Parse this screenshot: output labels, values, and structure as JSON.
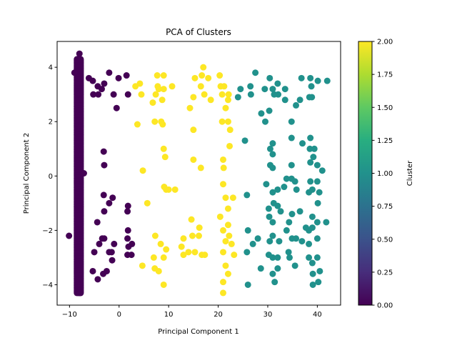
{
  "chart_data": {
    "type": "scatter",
    "title": "PCA of Clusters",
    "xlabel": "Principal Component 1",
    "ylabel": "Principal Component 2",
    "xlim": [
      -12.5,
      44.7
    ],
    "ylim": [
      -4.75,
      4.95
    ],
    "xticks": [
      -10,
      0,
      10,
      20,
      30,
      40
    ],
    "yticks": [
      -4,
      -2,
      0,
      2,
      4
    ],
    "grid": false,
    "colorbar": {
      "label": "Cluster",
      "min": 0.0,
      "max": 2.0,
      "ticks": [
        "0.00",
        "0.25",
        "0.50",
        "0.75",
        "1.00",
        "1.25",
        "1.50",
        "1.75",
        "2.00"
      ],
      "colormap": "viridis",
      "colors": {
        "cluster_0": "#440154",
        "cluster_1": "#21918c",
        "cluster_2": "#fde725"
      }
    },
    "series": [
      {
        "cluster": 0,
        "color": "#440154",
        "points": [
          [
            -10.1,
            -2.2
          ],
          [
            -9.0,
            3.8
          ],
          [
            -8.0,
            4.5
          ],
          [
            -7.9,
            -4.3
          ],
          [
            -7.1,
            0.1
          ],
          [
            -6.1,
            3.6
          ],
          [
            -5.3,
            3.5
          ],
          [
            -5.2,
            3.0
          ],
          [
            -4.3,
            3.3
          ],
          [
            -4.2,
            3.0
          ],
          [
            -3.5,
            3.2
          ],
          [
            -3.0,
            3.4
          ],
          [
            -3.1,
            0.9
          ],
          [
            -3.0,
            0.4
          ],
          [
            -3.1,
            -0.7
          ],
          [
            -3.0,
            -1.3
          ],
          [
            -3.4,
            -2.3
          ],
          [
            -3.0,
            -2.3
          ],
          [
            -4.4,
            -1.7
          ],
          [
            -4.0,
            -2.5
          ],
          [
            -5.0,
            -2.8
          ],
          [
            -5.3,
            -3.5
          ],
          [
            -3.2,
            -3.6
          ],
          [
            -4.3,
            -3.8
          ],
          [
            -2.0,
            3.8
          ],
          [
            -1.1,
            3.0
          ],
          [
            -0.5,
            2.5
          ],
          [
            -0.1,
            3.6
          ],
          [
            1.8,
            3.0
          ],
          [
            1.5,
            3.7
          ],
          [
            -1.3,
            -0.8
          ],
          [
            -2.0,
            -1.0
          ],
          [
            -1.0,
            -2.5
          ],
          [
            -2.0,
            -2.8
          ],
          [
            -1.5,
            -2.8
          ],
          [
            -1.4,
            -3.1
          ],
          [
            -2.5,
            -3.5
          ],
          [
            1.8,
            -1.1
          ],
          [
            1.7,
            -1.3
          ],
          [
            1.8,
            -2.0
          ],
          [
            1.7,
            -2.3
          ],
          [
            1.9,
            -2.6
          ],
          [
            1.7,
            -2.9
          ],
          [
            2.6,
            -2.5
          ],
          [
            2.5,
            -2.9
          ]
        ]
      },
      {
        "cluster": 2,
        "color": "#fde725",
        "points": [
          [
            3.3,
            3.3
          ],
          [
            4.2,
            3.4
          ],
          [
            4.5,
            3.0
          ],
          [
            3.7,
            1.9
          ],
          [
            4.8,
            0.2
          ],
          [
            5.7,
            -1.0
          ],
          [
            4.7,
            -3.3
          ],
          [
            6.8,
            2.7
          ],
          [
            7.4,
            3.0
          ],
          [
            7.2,
            2.0
          ],
          [
            7.7,
            3.7
          ],
          [
            7.8,
            3.3
          ],
          [
            8.0,
            3.2
          ],
          [
            9.0,
            3.7
          ],
          [
            9.0,
            3.2
          ],
          [
            8.7,
            2.8
          ],
          [
            8.5,
            2.0
          ],
          [
            8.8,
            1.9
          ],
          [
            9.0,
            1.0
          ],
          [
            9.3,
            0.7
          ],
          [
            9.1,
            -0.4
          ],
          [
            9.5,
            -0.5
          ],
          [
            10.0,
            -0.5
          ],
          [
            11.3,
            -0.5
          ],
          [
            7.3,
            -2.2
          ],
          [
            8.4,
            -2.5
          ],
          [
            7.0,
            -3.0
          ],
          [
            7.2,
            -3.4
          ],
          [
            8.0,
            -3.5
          ],
          [
            9.0,
            -3.0
          ],
          [
            9.5,
            -2.7
          ],
          [
            9.0,
            -4.0
          ],
          [
            10.7,
            3.3
          ],
          [
            13.0,
            -2.9
          ],
          [
            12.6,
            -2.6
          ],
          [
            13.0,
            -2.3
          ],
          [
            14.0,
            -2.8
          ],
          [
            14.8,
            -2.2
          ],
          [
            15.3,
            -2.8
          ],
          [
            14.6,
            -1.6
          ],
          [
            15.0,
            0.6
          ],
          [
            15.0,
            1.7
          ],
          [
            14.3,
            2.5
          ],
          [
            15.0,
            2.9
          ],
          [
            15.3,
            3.6
          ],
          [
            16.7,
            3.7
          ],
          [
            16.5,
            3.3
          ],
          [
            17.0,
            4.0
          ],
          [
            17.2,
            3.0
          ],
          [
            16.5,
            0.3
          ],
          [
            16.2,
            -1.9
          ],
          [
            16.1,
            -2.2
          ],
          [
            17.3,
            -2.9
          ],
          [
            16.7,
            -2.9
          ],
          [
            18.5,
            2.8
          ],
          [
            18.0,
            3.6
          ],
          [
            20.3,
            3.7
          ],
          [
            20.5,
            3.3
          ],
          [
            20.8,
            3.0
          ],
          [
            21.2,
            3.3
          ],
          [
            22.0,
            2.8
          ],
          [
            22.1,
            3.0
          ],
          [
            21.5,
            2.5
          ],
          [
            20.8,
            2.0
          ],
          [
            22.0,
            2.0
          ],
          [
            22.4,
            1.7
          ],
          [
            22.3,
            1.1
          ],
          [
            21.0,
            0.6
          ],
          [
            21.1,
            0.3
          ],
          [
            21.0,
            -0.3
          ],
          [
            21.5,
            -0.8
          ],
          [
            22.0,
            -1.2
          ],
          [
            22.0,
            -1.8
          ],
          [
            21.0,
            -2.0
          ],
          [
            21.5,
            -2.4
          ],
          [
            22.2,
            -2.2
          ],
          [
            21.0,
            -2.8
          ],
          [
            21.5,
            -3.3
          ],
          [
            22.0,
            -3.6
          ],
          [
            21.0,
            -3.9
          ],
          [
            21.0,
            -4.3
          ],
          [
            22.7,
            -2.5
          ],
          [
            23.2,
            -2.9
          ],
          [
            23.0,
            -0.8
          ],
          [
            20.4,
            -1.5
          ]
        ]
      },
      {
        "cluster": 1,
        "color": "#21918c",
        "points": [
          [
            24.0,
            2.9
          ],
          [
            24.5,
            3.2
          ],
          [
            25.4,
            1.3
          ],
          [
            25.8,
            -0.7
          ],
          [
            26.0,
            -2.0
          ],
          [
            25.8,
            -2.8
          ],
          [
            26.0,
            -4.0
          ],
          [
            26.5,
            3.3
          ],
          [
            26.6,
            3.0
          ],
          [
            27.0,
            -2.5
          ],
          [
            27.5,
            3.8
          ],
          [
            28.0,
            -2.3
          ],
          [
            28.7,
            2.3
          ],
          [
            28.6,
            -3.4
          ],
          [
            29.5,
            2.0
          ],
          [
            29.4,
            3.2
          ],
          [
            29.7,
            -0.3
          ],
          [
            30.4,
            3.6
          ],
          [
            30.3,
            2.4
          ],
          [
            30.5,
            1.0
          ],
          [
            30.5,
            0.4
          ],
          [
            30.2,
            -1.2
          ],
          [
            30.3,
            -1.5
          ],
          [
            30.4,
            -2.4
          ],
          [
            30.2,
            -2.9
          ],
          [
            31.0,
            3.2
          ],
          [
            31.3,
            3.0
          ],
          [
            31.0,
            1.2
          ],
          [
            31.0,
            0.8
          ],
          [
            31.0,
            0.3
          ],
          [
            31.0,
            -0.6
          ],
          [
            31.2,
            -1.0
          ],
          [
            31.0,
            -1.7
          ],
          [
            31.0,
            -2.2
          ],
          [
            31.0,
            -3.0
          ],
          [
            31.0,
            -3.6
          ],
          [
            31.4,
            -3.9
          ],
          [
            32.0,
            3.4
          ],
          [
            32.1,
            3.0
          ],
          [
            32.0,
            -0.5
          ],
          [
            32.0,
            -1.1
          ],
          [
            32.0,
            -3.0
          ],
          [
            32.6,
            -1.3
          ],
          [
            32.3,
            -2.4
          ],
          [
            32.0,
            -3.4
          ],
          [
            33.5,
            2.8
          ],
          [
            33.5,
            3.2
          ],
          [
            33.8,
            -0.1
          ],
          [
            33.3,
            -0.4
          ],
          [
            33.8,
            -2.0
          ],
          [
            34.8,
            2.0
          ],
          [
            34.8,
            1.4
          ],
          [
            34.8,
            0.4
          ],
          [
            34.8,
            -0.1
          ],
          [
            34.9,
            -1.4
          ],
          [
            34.3,
            -1.7
          ],
          [
            34.9,
            -2.3
          ],
          [
            34.2,
            -2.8
          ],
          [
            34.4,
            -3.0
          ],
          [
            35.7,
            2.6
          ],
          [
            35.5,
            -0.2
          ],
          [
            35.8,
            -0.5
          ],
          [
            35.7,
            -2.3
          ],
          [
            35.5,
            -3.3
          ],
          [
            36.8,
            3.6
          ],
          [
            36.5,
            2.8
          ],
          [
            37.0,
            1.2
          ],
          [
            36.5,
            -1.3
          ],
          [
            36.9,
            -2.4
          ],
          [
            37.7,
            -1.9
          ],
          [
            38.6,
            3.6
          ],
          [
            38.8,
            3.3
          ],
          [
            38.9,
            2.9
          ],
          [
            38.4,
            2.9
          ],
          [
            38.6,
            1.4
          ],
          [
            38.5,
            1.0
          ],
          [
            38.6,
            0.5
          ],
          [
            38.6,
            -0.2
          ],
          [
            38.3,
            -0.6
          ],
          [
            38.3,
            -2.0
          ],
          [
            38.3,
            -2.5
          ],
          [
            38.3,
            -3.0
          ],
          [
            39.4,
            1.0
          ],
          [
            39.2,
            0.7
          ],
          [
            39.0,
            -0.5
          ],
          [
            39.0,
            -1.5
          ],
          [
            39.0,
            -1.9
          ],
          [
            39.0,
            -3.2
          ],
          [
            39.1,
            -3.6
          ],
          [
            39.1,
            -4.0
          ],
          [
            40.1,
            3.5
          ],
          [
            40.0,
            0.4
          ],
          [
            40.0,
            -0.2
          ],
          [
            40.4,
            -0.6
          ],
          [
            40.1,
            -1.0
          ],
          [
            40.0,
            -1.7
          ],
          [
            40.0,
            -2.3
          ],
          [
            40.0,
            -3.0
          ],
          [
            40.5,
            -3.5
          ],
          [
            40.2,
            -3.9
          ],
          [
            41.0,
            0.2
          ],
          [
            42.0,
            3.5
          ],
          [
            41.8,
            -1.7
          ]
        ]
      }
    ],
    "dense_band": {
      "cluster": 0,
      "x": [
        -8.5,
        -7.7
      ],
      "y": [
        -4.3,
        4.3
      ]
    }
  }
}
